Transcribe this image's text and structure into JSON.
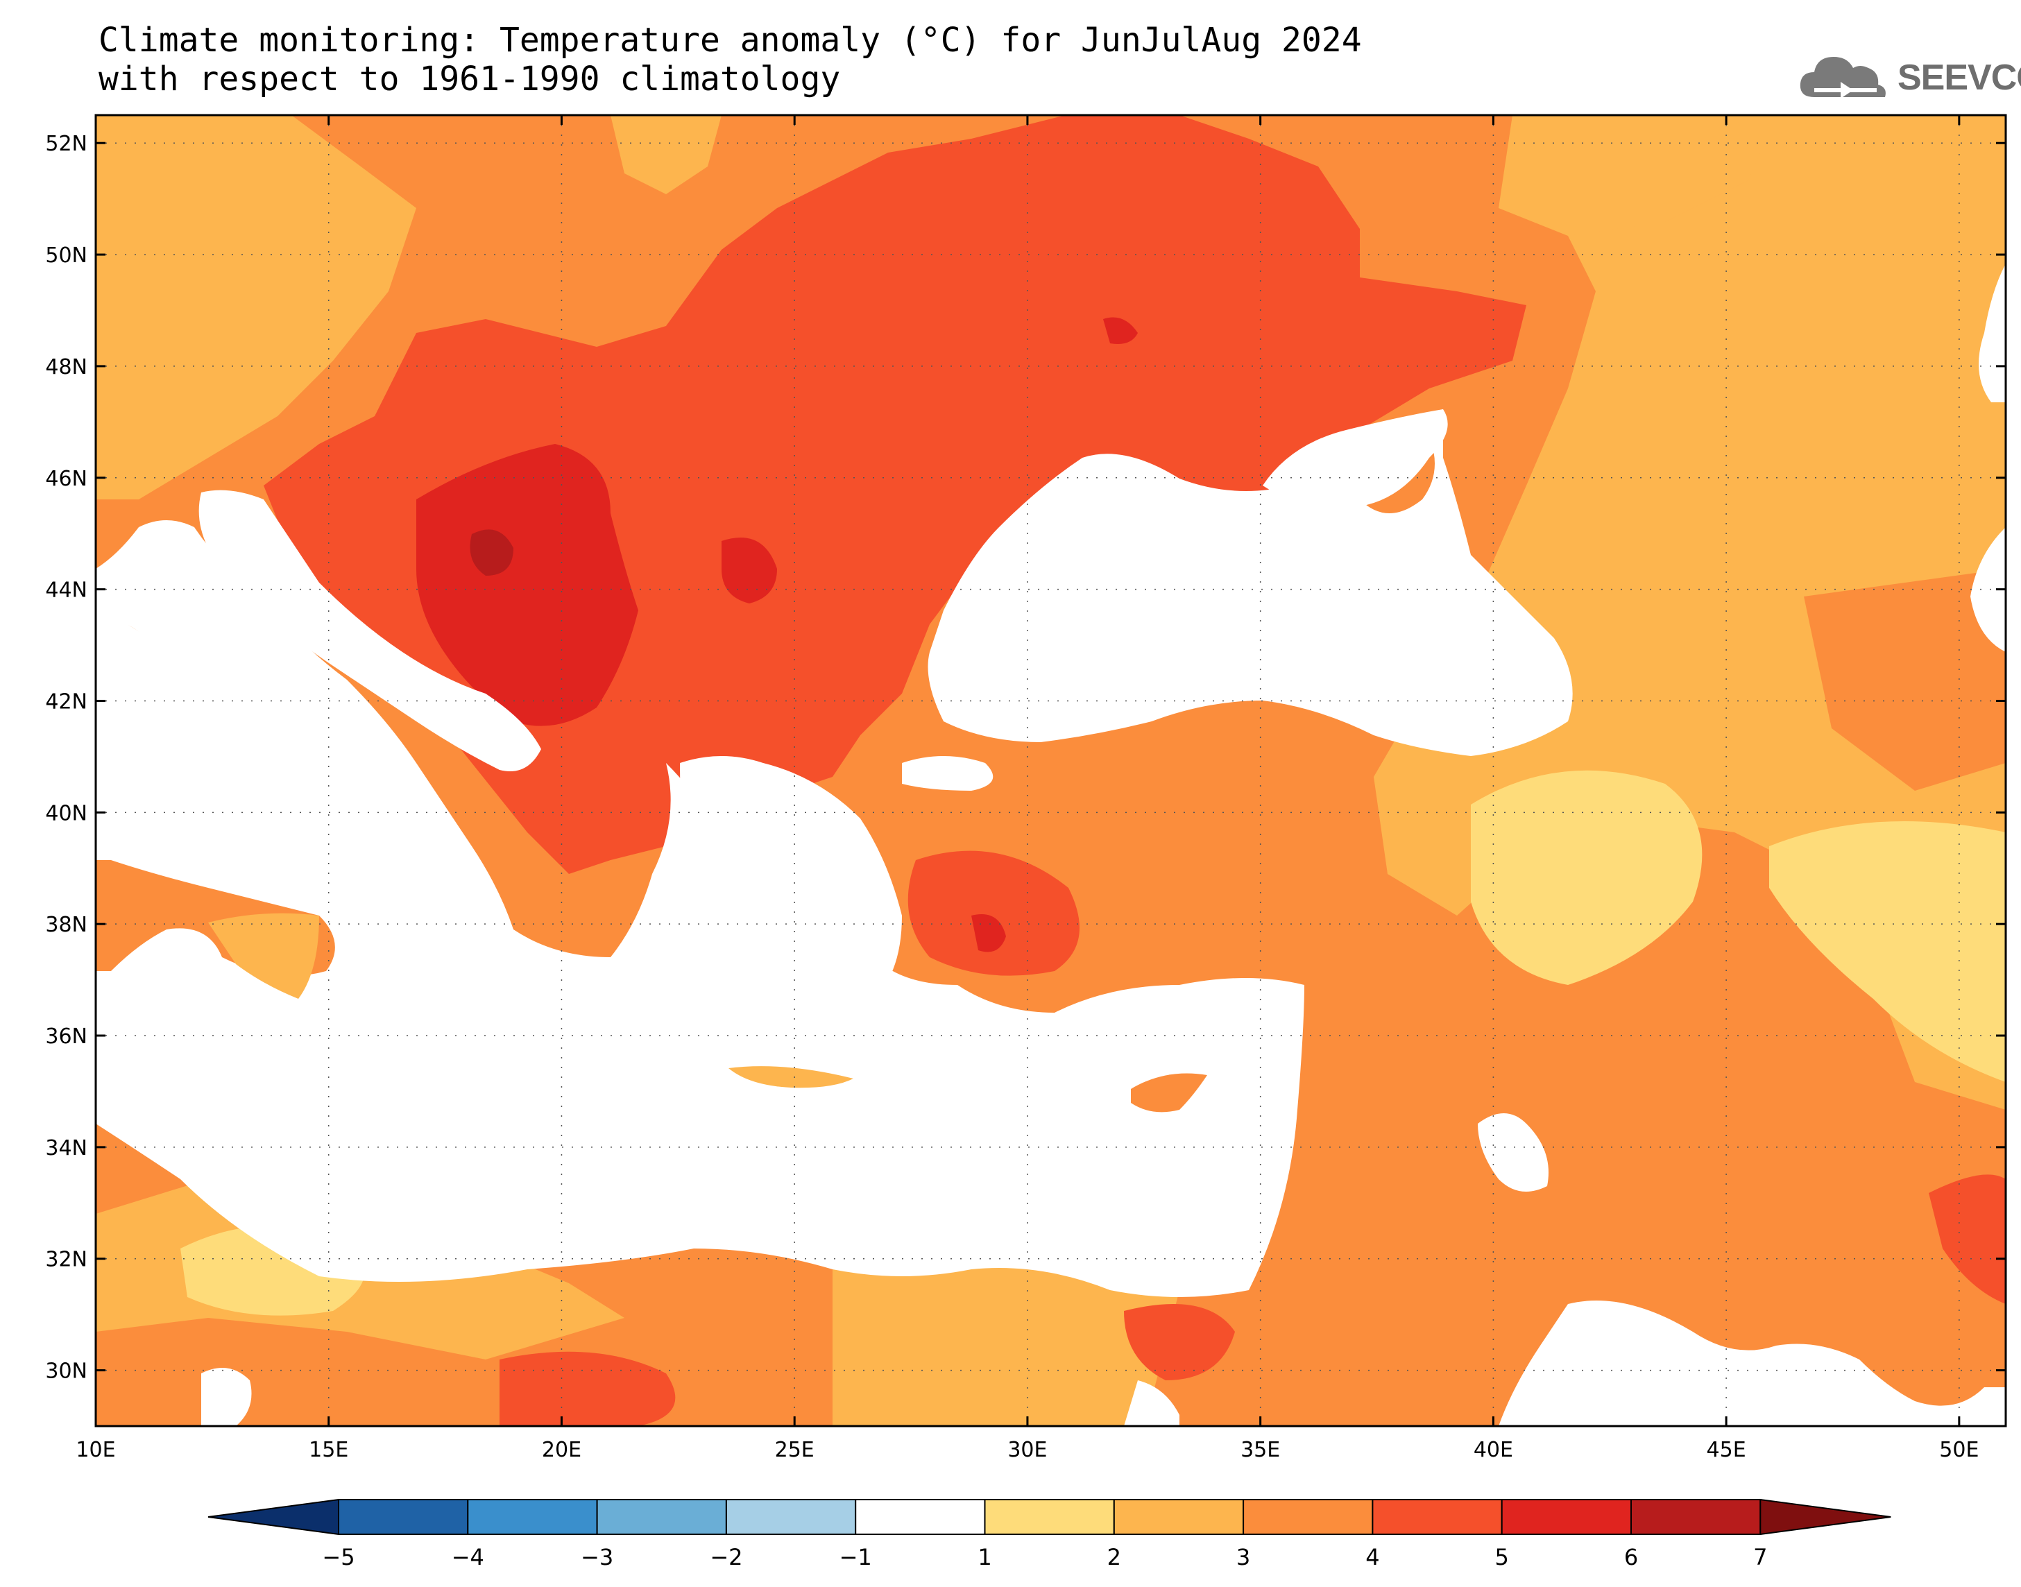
{
  "title": {
    "line1": "Climate monitoring: Temperature anomaly (°C) for JunJulAug 2024",
    "line2": "with respect to 1961-1990 climatology"
  },
  "logo": {
    "text": "SEEVCCC",
    "icon": "cloud-icon"
  },
  "map": {
    "lon_range": [
      10,
      51
    ],
    "lat_range": [
      29,
      52.5
    ],
    "lon_ticks": [
      "10E",
      "15E",
      "20E",
      "25E",
      "30E",
      "35E",
      "40E",
      "45E",
      "50E"
    ],
    "lat_ticks": [
      "30N",
      "32N",
      "34N",
      "36N",
      "38N",
      "40N",
      "42N",
      "44N",
      "46N",
      "48N",
      "50N",
      "52N"
    ]
  },
  "colorbar": {
    "labels": [
      "-5",
      "-4",
      "-3",
      "-2",
      "-1",
      "1",
      "2",
      "3",
      "4",
      "5",
      "6",
      "7"
    ],
    "colors": {
      "lt_neg5": "#0b2f6b",
      "neg5_neg4": "#1f62a6",
      "neg4_neg3": "#3a8fcc",
      "neg3_neg2": "#6aaed6",
      "neg2_neg1": "#a6cfe6",
      "neg1_1": "#ffffff",
      "c1_2": "#fedc7a",
      "c2_3": "#fdb54e",
      "c3_4": "#fb8d3c",
      "c4_5": "#f5502b",
      "c5_6": "#e0241f",
      "c6_7": "#b71c1c",
      "gt_7": "#7f0f0f"
    }
  }
}
